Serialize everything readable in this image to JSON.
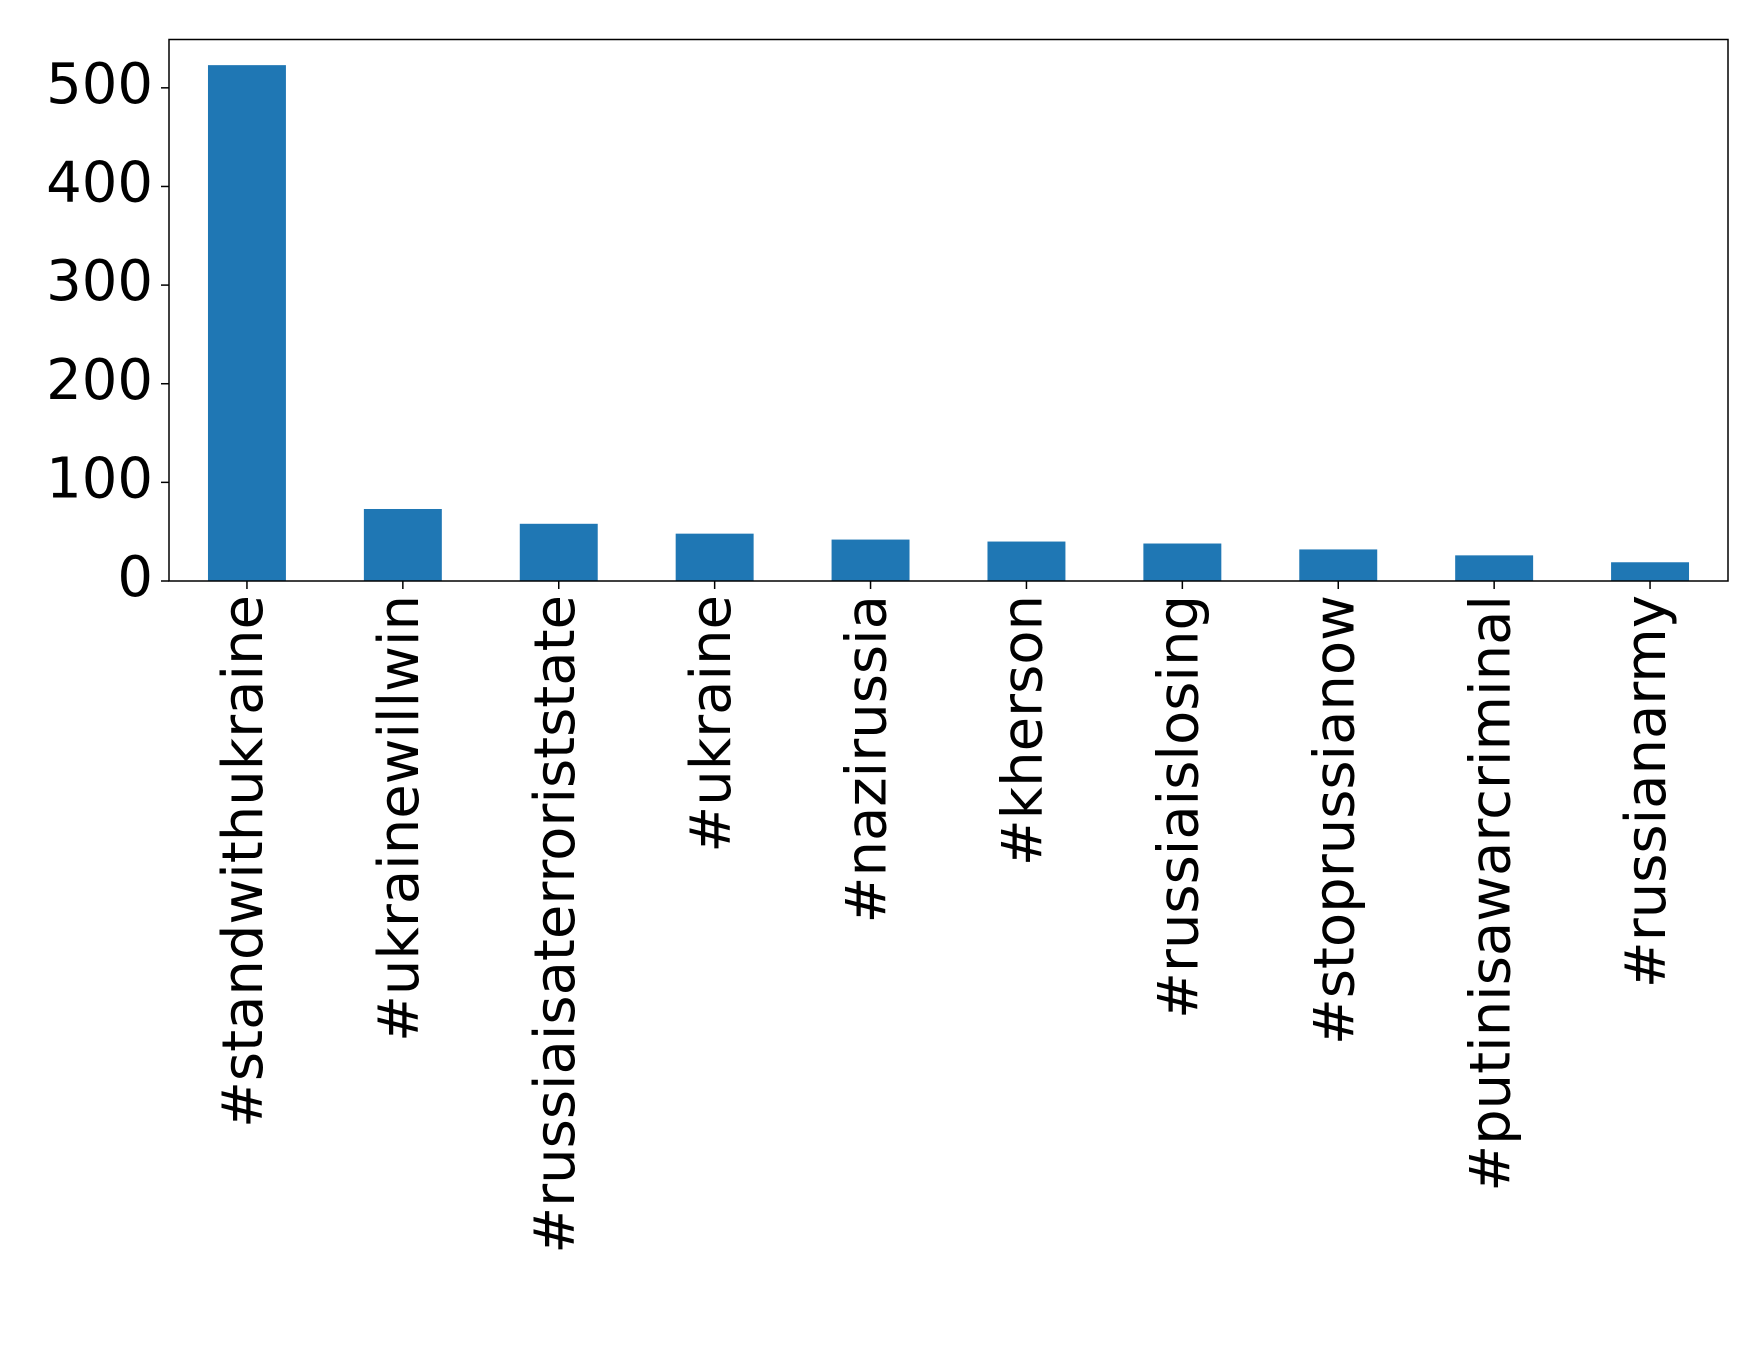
{
  "chart_data": {
    "type": "bar",
    "categories": [
      "#standwithukraine",
      "#ukrainewillwin",
      "#russiaisaterroriststate",
      "#ukraine",
      "#nazirussia",
      "#kherson",
      "#russiaislosing",
      "#stoprussianow",
      "#putinisawarcriminal",
      "#russianarmy"
    ],
    "values": [
      523,
      73,
      58,
      48,
      42,
      40,
      38,
      32,
      26,
      19
    ],
    "color": "#1f77b4",
    "ylim": [
      0,
      549
    ],
    "yticks": [
      0,
      100,
      200,
      300,
      400,
      500
    ],
    "grid": false
  }
}
